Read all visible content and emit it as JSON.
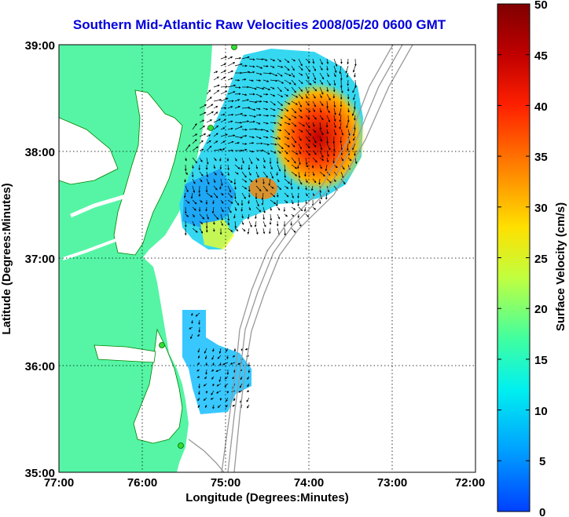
{
  "title": "Southern Mid-Atlantic Raw Velocities 2008/05/20 0600 GMT",
  "axes": {
    "xlabel": "Longitude (Degrees:Minutes)",
    "ylabel": "Latitude (Degrees:Minutes)",
    "x_ticks": [
      "77:00",
      "76:00",
      "75:00",
      "74:00",
      "73:00",
      "72:00"
    ],
    "y_ticks": [
      "39:00",
      "38:00",
      "37:00",
      "36:00",
      "35:00"
    ],
    "x_range": [
      -77,
      -72
    ],
    "y_range": [
      35,
      39
    ]
  },
  "colorbar": {
    "label": "Surface Velocity (cm/s)",
    "ticks": [
      "50",
      "45",
      "40",
      "35",
      "30",
      "25",
      "20",
      "15",
      "10",
      "5",
      "0"
    ],
    "range": [
      0,
      50
    ],
    "colors": [
      "#0040ff",
      "#00a0ff",
      "#00f0f0",
      "#40ffa0",
      "#c0ff40",
      "#ffe000",
      "#ff8000",
      "#ff2000",
      "#c00000",
      "#800000"
    ]
  },
  "colors": {
    "land": "#55f5a5",
    "coast": "#008000",
    "bathymetry": "#999999",
    "grid": "#000000",
    "title": "#0000dd"
  }
}
